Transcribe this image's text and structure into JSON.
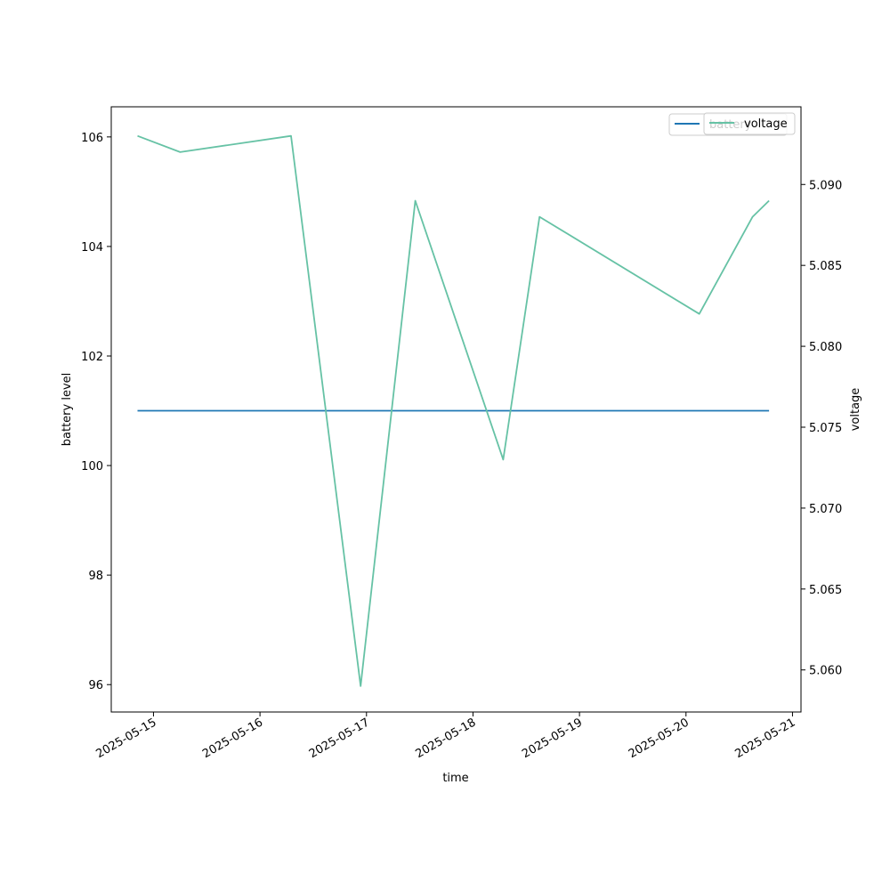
{
  "chart_data": {
    "type": "line",
    "xlabel": "time",
    "ylabel_left": "battery level",
    "ylabel_right": "voltage",
    "x_ticks": [
      "2025-05-15",
      "2025-05-16",
      "2025-05-17",
      "2025-05-18",
      "2025-05-19",
      "2025-05-20",
      "2025-05-21"
    ],
    "y_left_ticks": [
      "96",
      "98",
      "100",
      "102",
      "104",
      "106"
    ],
    "y_right_ticks": [
      "5.060",
      "5.065",
      "5.070",
      "5.075",
      "5.080",
      "5.085",
      "5.090"
    ],
    "x_range": [
      "2025-05-14 14:29",
      "2025-05-21 01:55"
    ],
    "y_left_range": [
      95.5,
      106.55
    ],
    "y_right_range": [
      5.0574,
      5.0948
    ],
    "legend_placement": "top-right",
    "grid": false,
    "series": [
      {
        "name": "battery",
        "axis": "left",
        "color": "#1f77b4",
        "points": [
          [
            "2025-05-14 20:24",
            101
          ],
          [
            "2025-05-20 18:43",
            101
          ]
        ]
      },
      {
        "name": "voltage",
        "axis": "right",
        "color": "#66c2a5",
        "points": [
          [
            "2025-05-14 20:24",
            5.093
          ],
          [
            "2025-05-15 06:00",
            5.092
          ],
          [
            "2025-05-16 07:00",
            5.093
          ],
          [
            "2025-05-16 22:41",
            5.059
          ],
          [
            "2025-05-17 11:00",
            5.089
          ],
          [
            "2025-05-18 06:48",
            5.073
          ],
          [
            "2025-05-18 15:00",
            5.088
          ],
          [
            "2025-05-20 03:00",
            5.082
          ],
          [
            "2025-05-20 15:00",
            5.088
          ],
          [
            "2025-05-20 18:43",
            5.089
          ]
        ]
      }
    ]
  }
}
